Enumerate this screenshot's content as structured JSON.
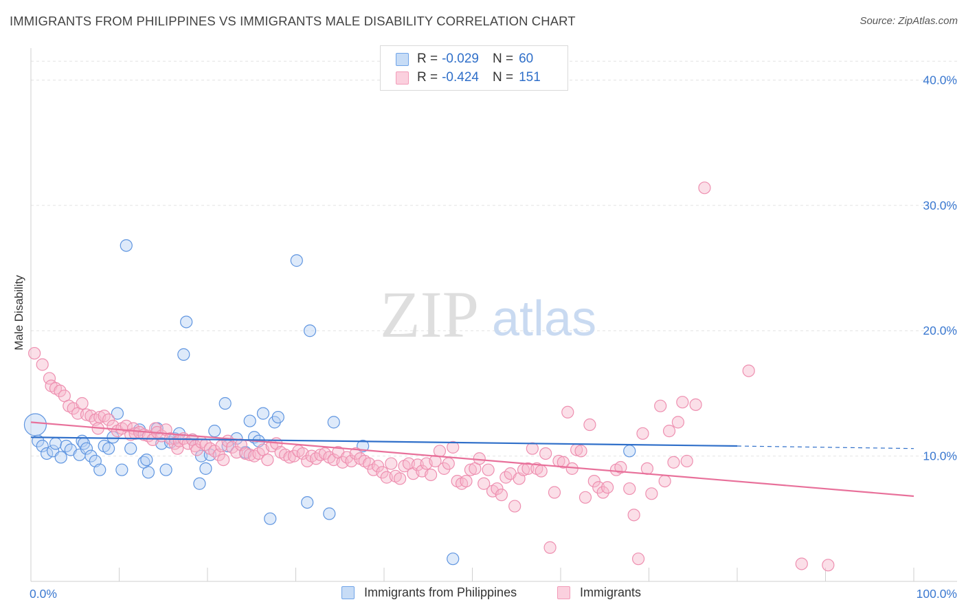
{
  "header": {
    "title": "IMMIGRANTS FROM PHILIPPINES VS IMMIGRANTS MALE DISABILITY CORRELATION CHART",
    "source": "Source: ZipAtlas.com"
  },
  "watermark": {
    "zip": "ZIP",
    "atlas": "atlas"
  },
  "legend_top": [
    {
      "r_label": "R =",
      "r_value": "-0.029",
      "n_label": "N =",
      "n_value": "60"
    },
    {
      "r_label": "R =",
      "r_value": "-0.424",
      "n_label": "N =",
      "n_value": "151"
    }
  ],
  "chart_data": {
    "type": "scatter",
    "title": "IMMIGRANTS FROM PHILIPPINES VS IMMIGRANTS MALE DISABILITY CORRELATION CHART",
    "xlabel": "",
    "ylabel": "Male Disability",
    "xlim": [
      0,
      100
    ],
    "ylim": [
      0,
      42
    ],
    "x_tick_labels": [
      "0.0%",
      "100.0%"
    ],
    "y_ticks": [
      10,
      20,
      30,
      40
    ],
    "y_tick_labels": [
      "10.0%",
      "20.0%",
      "30.0%",
      "40.0%"
    ],
    "grid": true,
    "legend_position": "bottom",
    "colors": {
      "blue": "#6fa3e8",
      "blue_line": "#2f6fc9",
      "pink": "#f29bb8",
      "pink_line": "#e8709a"
    },
    "series": [
      {
        "name": "Immigrants from Philippines",
        "color": "#6fa3e8",
        "trend": {
          "x": [
            0,
            80
          ],
          "y": [
            11.5,
            10.8
          ],
          "dashed_to": [
            100,
            10.6
          ]
        },
        "points": [
          [
            0.5,
            12.5,
            "big"
          ],
          [
            0.8,
            11.2
          ],
          [
            1.3,
            10.8
          ],
          [
            1.8,
            10.2
          ],
          [
            2.5,
            10.4
          ],
          [
            2.8,
            11.0
          ],
          [
            3.4,
            9.9
          ],
          [
            4.0,
            10.8
          ],
          [
            4.5,
            10.5
          ],
          [
            5.5,
            10.1
          ],
          [
            5.8,
            11.2
          ],
          [
            6.0,
            11.0
          ],
          [
            6.3,
            10.6
          ],
          [
            6.8,
            10.0
          ],
          [
            7.3,
            9.6
          ],
          [
            7.8,
            8.9
          ],
          [
            8.3,
            10.8
          ],
          [
            8.8,
            10.6
          ],
          [
            9.3,
            11.5
          ],
          [
            9.8,
            13.4
          ],
          [
            10.3,
            8.9
          ],
          [
            10.8,
            26.8
          ],
          [
            11.3,
            10.6
          ],
          [
            12.3,
            12.1
          ],
          [
            12.8,
            9.5
          ],
          [
            13.1,
            9.7
          ],
          [
            13.3,
            8.7
          ],
          [
            14.3,
            12.2
          ],
          [
            14.8,
            11.0
          ],
          [
            15.3,
            8.9
          ],
          [
            15.8,
            11.1
          ],
          [
            16.3,
            11.4
          ],
          [
            16.8,
            11.8
          ],
          [
            17.3,
            18.1
          ],
          [
            17.6,
            20.7
          ],
          [
            18.3,
            11.3
          ],
          [
            19.1,
            7.8
          ],
          [
            19.3,
            10.0
          ],
          [
            19.8,
            9.0
          ],
          [
            20.3,
            10.1
          ],
          [
            20.8,
            12.0
          ],
          [
            22.0,
            14.2
          ],
          [
            22.3,
            10.8
          ],
          [
            23.3,
            11.4
          ],
          [
            24.3,
            10.3
          ],
          [
            24.8,
            12.8
          ],
          [
            25.3,
            11.5
          ],
          [
            25.8,
            11.2
          ],
          [
            26.3,
            13.4
          ],
          [
            27.1,
            5.0
          ],
          [
            27.6,
            12.7
          ],
          [
            28.0,
            13.1
          ],
          [
            30.1,
            25.6
          ],
          [
            31.3,
            6.3
          ],
          [
            31.6,
            20.0
          ],
          [
            33.8,
            5.4
          ],
          [
            34.3,
            12.7
          ],
          [
            37.6,
            10.8
          ],
          [
            47.8,
            1.8
          ],
          [
            67.8,
            10.4
          ]
        ]
      },
      {
        "name": "Immigrants",
        "color": "#f29bb8",
        "trend": {
          "x": [
            0,
            100
          ],
          "y": [
            12.7,
            6.8
          ]
        },
        "points": [
          [
            0.4,
            18.2
          ],
          [
            1.3,
            17.3
          ],
          [
            2.1,
            16.2
          ],
          [
            2.3,
            15.6
          ],
          [
            2.8,
            15.4
          ],
          [
            3.3,
            15.2
          ],
          [
            3.8,
            14.8
          ],
          [
            4.3,
            14.0
          ],
          [
            4.8,
            13.8
          ],
          [
            5.3,
            13.4
          ],
          [
            5.8,
            14.2
          ],
          [
            6.3,
            13.3
          ],
          [
            6.8,
            13.2
          ],
          [
            7.3,
            12.9
          ],
          [
            7.6,
            12.2
          ],
          [
            7.8,
            13.1
          ],
          [
            8.3,
            13.2
          ],
          [
            8.8,
            12.9
          ],
          [
            9.3,
            12.4
          ],
          [
            9.8,
            12.0
          ],
          [
            10.3,
            12.2
          ],
          [
            10.8,
            12.4
          ],
          [
            11.3,
            11.7
          ],
          [
            11.6,
            12.2
          ],
          [
            11.8,
            11.8
          ],
          [
            12.3,
            11.9
          ],
          [
            12.8,
            11.7
          ],
          [
            13.3,
            11.6
          ],
          [
            13.8,
            11.3
          ],
          [
            14.1,
            12.2
          ],
          [
            14.3,
            11.9
          ],
          [
            14.8,
            11.6
          ],
          [
            15.3,
            12.1
          ],
          [
            15.8,
            11.4
          ],
          [
            16.3,
            11.0
          ],
          [
            16.6,
            10.6
          ],
          [
            16.8,
            11.2
          ],
          [
            17.3,
            11.4
          ],
          [
            17.8,
            11.0
          ],
          [
            18.3,
            11.3
          ],
          [
            18.6,
            10.8
          ],
          [
            18.8,
            10.5
          ],
          [
            19.3,
            11.1
          ],
          [
            19.8,
            10.9
          ],
          [
            20.3,
            10.6
          ],
          [
            20.8,
            10.4
          ],
          [
            21.3,
            10.1
          ],
          [
            21.6,
            10.8
          ],
          [
            21.8,
            9.7
          ],
          [
            22.3,
            11.2
          ],
          [
            22.8,
            10.7
          ],
          [
            23.3,
            10.3
          ],
          [
            23.8,
            10.9
          ],
          [
            24.3,
            10.2
          ],
          [
            24.8,
            10.1
          ],
          [
            25.3,
            10.0
          ],
          [
            25.8,
            10.2
          ],
          [
            26.3,
            10.5
          ],
          [
            26.8,
            9.7
          ],
          [
            27.3,
            10.8
          ],
          [
            27.8,
            11.0
          ],
          [
            28.3,
            10.3
          ],
          [
            28.8,
            10.1
          ],
          [
            29.3,
            9.9
          ],
          [
            29.8,
            10.0
          ],
          [
            30.3,
            10.4
          ],
          [
            30.8,
            10.2
          ],
          [
            31.3,
            9.6
          ],
          [
            31.8,
            10.0
          ],
          [
            32.3,
            9.8
          ],
          [
            32.8,
            10.1
          ],
          [
            33.3,
            10.2
          ],
          [
            33.8,
            9.9
          ],
          [
            34.3,
            9.7
          ],
          [
            34.8,
            10.3
          ],
          [
            35.3,
            9.5
          ],
          [
            35.8,
            9.9
          ],
          [
            36.3,
            9.6
          ],
          [
            36.8,
            10.2
          ],
          [
            37.3,
            9.8
          ],
          [
            37.8,
            9.6
          ],
          [
            38.3,
            9.4
          ],
          [
            38.8,
            8.9
          ],
          [
            39.3,
            9.2
          ],
          [
            39.8,
            8.7
          ],
          [
            40.3,
            8.3
          ],
          [
            40.8,
            9.4
          ],
          [
            41.3,
            8.4
          ],
          [
            41.8,
            8.2
          ],
          [
            42.3,
            9.2
          ],
          [
            42.8,
            9.4
          ],
          [
            43.3,
            8.6
          ],
          [
            43.8,
            9.3
          ],
          [
            44.3,
            8.8
          ],
          [
            44.8,
            9.4
          ],
          [
            45.3,
            8.5
          ],
          [
            45.8,
            9.6
          ],
          [
            46.3,
            10.4
          ],
          [
            46.8,
            9.0
          ],
          [
            47.3,
            9.4
          ],
          [
            47.8,
            10.7
          ],
          [
            48.3,
            8.0
          ],
          [
            48.8,
            7.8
          ],
          [
            49.3,
            8.0
          ],
          [
            49.8,
            8.9
          ],
          [
            50.3,
            9.0
          ],
          [
            50.8,
            9.8
          ],
          [
            51.3,
            7.8
          ],
          [
            51.8,
            8.9
          ],
          [
            52.3,
            7.2
          ],
          [
            52.8,
            7.4
          ],
          [
            53.3,
            6.9
          ],
          [
            53.8,
            8.3
          ],
          [
            54.3,
            8.6
          ],
          [
            54.8,
            6.0
          ],
          [
            55.3,
            8.2
          ],
          [
            55.8,
            8.9
          ],
          [
            56.3,
            9.0
          ],
          [
            56.8,
            10.6
          ],
          [
            57.3,
            9.0
          ],
          [
            57.8,
            8.8
          ],
          [
            58.3,
            10.2
          ],
          [
            58.8,
            2.7
          ],
          [
            59.3,
            7.1
          ],
          [
            59.8,
            9.6
          ],
          [
            60.3,
            9.5
          ],
          [
            60.8,
            13.5
          ],
          [
            61.3,
            9.0
          ],
          [
            61.8,
            10.5
          ],
          [
            62.3,
            10.4
          ],
          [
            62.8,
            6.7
          ],
          [
            63.3,
            12.5
          ],
          [
            63.8,
            8.0
          ],
          [
            64.3,
            7.5
          ],
          [
            64.8,
            7.1
          ],
          [
            65.3,
            7.5
          ],
          [
            66.3,
            8.9
          ],
          [
            66.8,
            9.1
          ],
          [
            67.8,
            7.4
          ],
          [
            68.3,
            5.3
          ],
          [
            68.8,
            1.8
          ],
          [
            69.3,
            11.8
          ],
          [
            69.8,
            9.0
          ],
          [
            70.3,
            7.0
          ],
          [
            71.3,
            14.0
          ],
          [
            71.8,
            8.0
          ],
          [
            72.3,
            12.0
          ],
          [
            72.8,
            9.5
          ],
          [
            73.3,
            12.7
          ],
          [
            73.8,
            14.3
          ],
          [
            74.3,
            9.6
          ],
          [
            75.3,
            14.1
          ],
          [
            76.3,
            31.4
          ],
          [
            81.3,
            16.8
          ],
          [
            87.3,
            1.4
          ],
          [
            90.3,
            1.3
          ]
        ]
      }
    ]
  },
  "legend_bottom": [
    {
      "label": "Immigrants from Philippines"
    },
    {
      "label": "Immigrants"
    }
  ]
}
